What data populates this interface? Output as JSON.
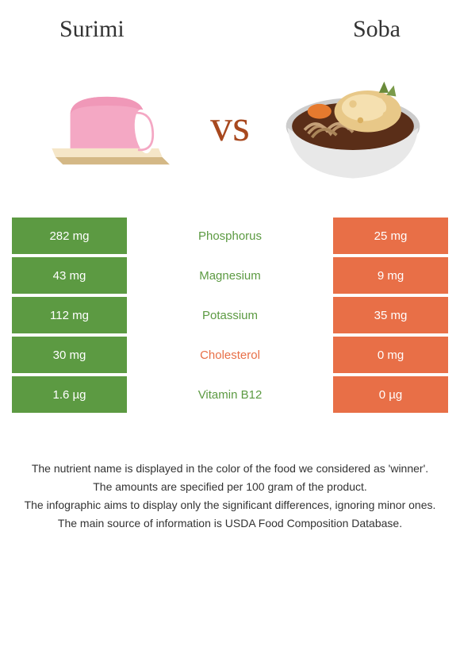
{
  "header": {
    "left_title": "Surimi",
    "right_title": "Soba"
  },
  "vs_text": "vs",
  "colors": {
    "left_bar": "#5c9a42",
    "right_bar": "#e86f47",
    "winner_left_text": "#5c9a42",
    "winner_right_text": "#e86f47",
    "vs": "#a8481e"
  },
  "rows": [
    {
      "left": "282 mg",
      "label": "Phosphorus",
      "right": "25 mg",
      "winner": "left"
    },
    {
      "left": "43 mg",
      "label": "Magnesium",
      "right": "9 mg",
      "winner": "left"
    },
    {
      "left": "112 mg",
      "label": "Potassium",
      "right": "35 mg",
      "winner": "left"
    },
    {
      "left": "30 mg",
      "label": "Cholesterol",
      "right": "0 mg",
      "winner": "right"
    },
    {
      "left": "1.6 µg",
      "label": "Vitamin B12",
      "right": "0 µg",
      "winner": "left"
    }
  ],
  "footer": {
    "line1": "The nutrient name is displayed in the color of the food we considered as 'winner'.",
    "line2": "The amounts are specified per 100 gram of the product.",
    "line3": "The infographic aims to display only the significant differences, ignoring minor ones.",
    "line4": "The main source of information is USDA Food Composition Database."
  },
  "images": {
    "surimi": {
      "body_color": "#f4a8c4",
      "face_color": "#ffffff",
      "board_top": "#f5e6c8",
      "board_side": "#d4b886"
    },
    "soba": {
      "bowl_outer": "#e8e8e8",
      "bowl_rim": "#cccccc",
      "broth": "#5a2e18",
      "noodle": "#b89268",
      "tempura": "#e8c888",
      "tempura_highlight": "#f5e0b0",
      "garnish_orange": "#e67a2e",
      "garnish_green": "#6a8a3a"
    }
  }
}
